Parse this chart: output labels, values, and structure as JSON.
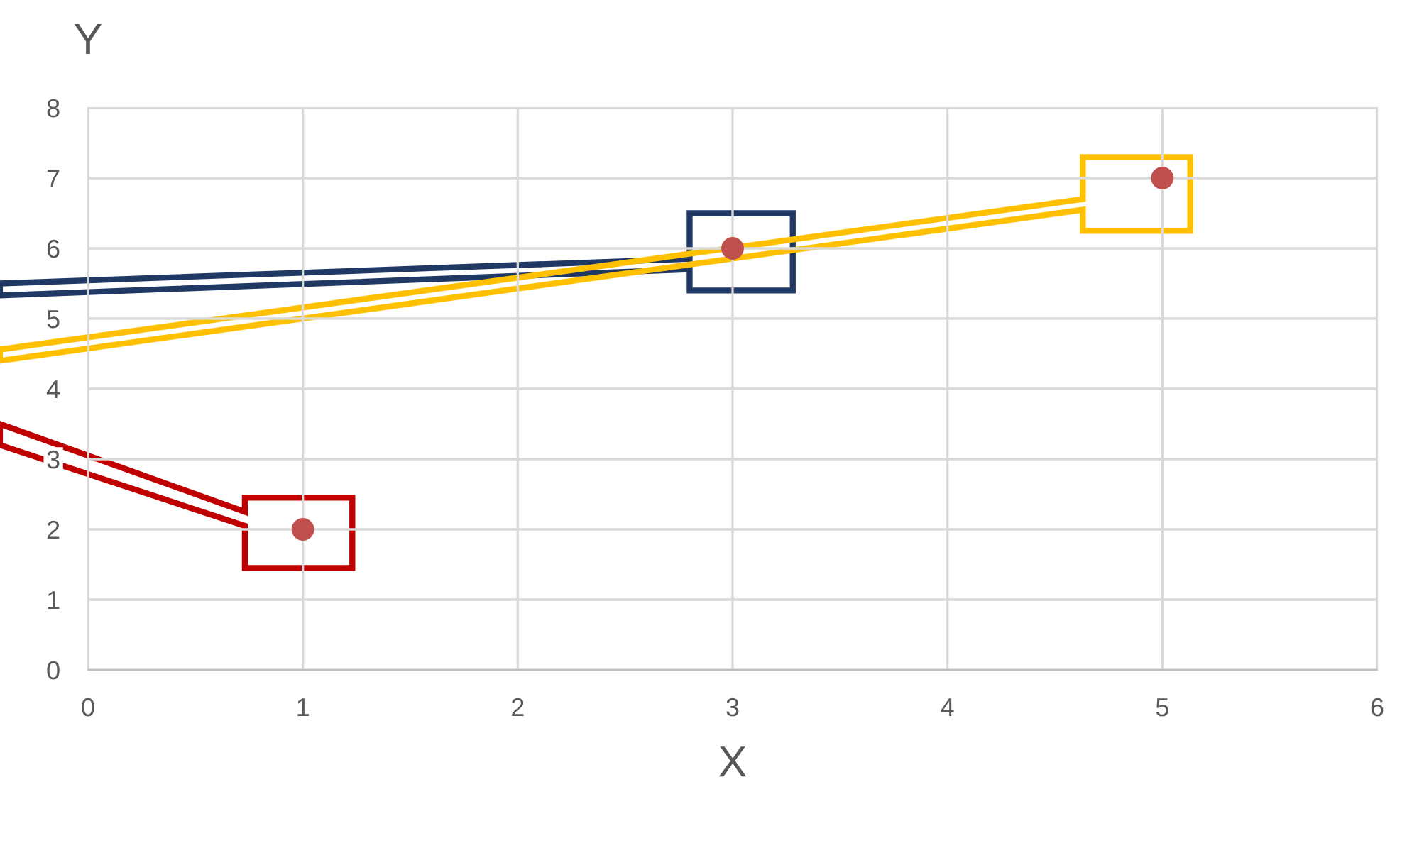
{
  "chart_data": {
    "type": "scatter",
    "xlabel": "X",
    "ylabel": "Y",
    "x": [
      1,
      3,
      5
    ],
    "series": [
      {
        "color": "#c0504d",
        "values": [
          2,
          6,
          7
        ]
      }
    ],
    "xlim": [
      0,
      6
    ],
    "ylim": [
      0,
      8
    ],
    "xticks": [
      0,
      1,
      2,
      3,
      4,
      5,
      6
    ],
    "yticks": [
      0,
      1,
      2,
      3,
      4,
      5,
      6,
      7,
      8
    ],
    "grid": true,
    "marker": "circle"
  }
}
